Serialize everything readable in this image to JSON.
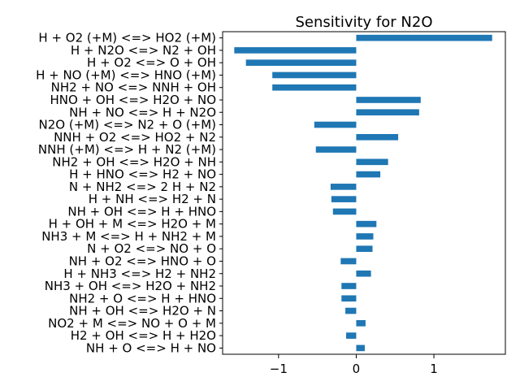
{
  "chart_data": {
    "type": "bar",
    "orientation": "horizontal",
    "title": "Sensitivity for N2O",
    "xlabel": "",
    "ylabel": "",
    "xlim": [
      -1.72,
      1.92
    ],
    "xticks": [
      -1,
      0,
      1
    ],
    "xtick_labels": [
      "−1",
      "0",
      "1"
    ],
    "grid": false,
    "bar_color": "#1f77b4",
    "categories": [
      "H + O2 (+M) <=> HO2 (+M)",
      "H + N2O <=> N2 + OH",
      "H + O2 <=> O + OH",
      "H + NO (+M) <=> HNO (+M)",
      "NH2 + NO <=> NNH + OH",
      "HNO + OH <=> H2O + NO",
      "NH + NO <=> H + N2O",
      "N2O (+M) <=> N2 + O (+M)",
      "NNH + O2 <=> HO2 + N2",
      "NNH (+M) <=> H + N2 (+M)",
      "NH2 + OH <=> H2O + NH",
      "H + HNO <=> H2 + NO",
      "N + NH2 <=> 2 H + N2",
      "H + NH <=> H2 + N",
      "NH + OH <=> H + HNO",
      "H + OH + M <=> H2O + M",
      "NH3 + M <=> H + NH2 + M",
      "N + O2 <=> NO + O",
      "NH + O2 <=> HNO + O",
      "H + NH3 <=> H2 + NH2",
      "NH3 + OH <=> H2O + NH2",
      "NH2 + O <=> H + HNO",
      "NH + OH <=> H2O + N",
      "NO2 + M <=> NO + O + M",
      "H2 + OH <=> H + H2O",
      "NH + O <=> H + NO"
    ],
    "values": [
      1.75,
      -1.57,
      -1.42,
      -1.08,
      -1.08,
      0.83,
      0.81,
      -0.54,
      0.54,
      -0.52,
      0.41,
      0.31,
      -0.33,
      -0.32,
      -0.3,
      0.26,
      0.22,
      0.21,
      -0.2,
      0.19,
      -0.19,
      -0.19,
      -0.14,
      0.12,
      -0.13,
      0.11
    ]
  }
}
